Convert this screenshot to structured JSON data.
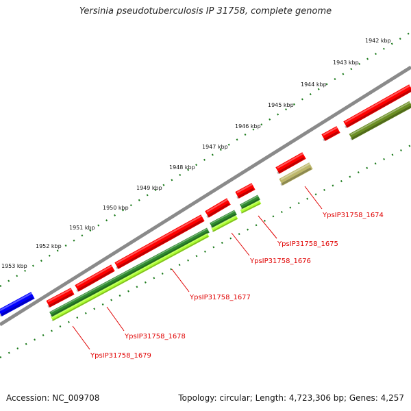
{
  "title": "Yersinia pseudotuberculosis IP 31758, complete genome",
  "footer": {
    "accession": "Accession: NC_009708",
    "stats": "Topology: circular; Length: 4,723,306 bp; Genes: 4,257"
  },
  "ticks": [
    "1942 kbp",
    "1943 kbp",
    "1944 kbp",
    "1945 kbp",
    "1946 kbp",
    "1947 kbp",
    "1948 kbp",
    "1949 kbp",
    "1950 kbp",
    "1951 kbp",
    "1952 kbp",
    "1953 kbp"
  ],
  "gene_labels": [
    "YpsIP31758_1674",
    "YpsIP31758_1675",
    "YpsIP31758_1676",
    "YpsIP31758_1677",
    "YpsIP31758_1678",
    "YpsIP31758_1679"
  ],
  "colors": {
    "cds": "#ff0000",
    "cds_alt": "#0000ff",
    "backbone": "#888888",
    "feature_dark_green": "#2e8b2e",
    "feature_light_green": "#adff2f",
    "feature_olive": "#6b8e23",
    "feature_tan": "#bdb76b",
    "tick_green": "#1a7a1a",
    "label_red": "#e00000"
  }
}
